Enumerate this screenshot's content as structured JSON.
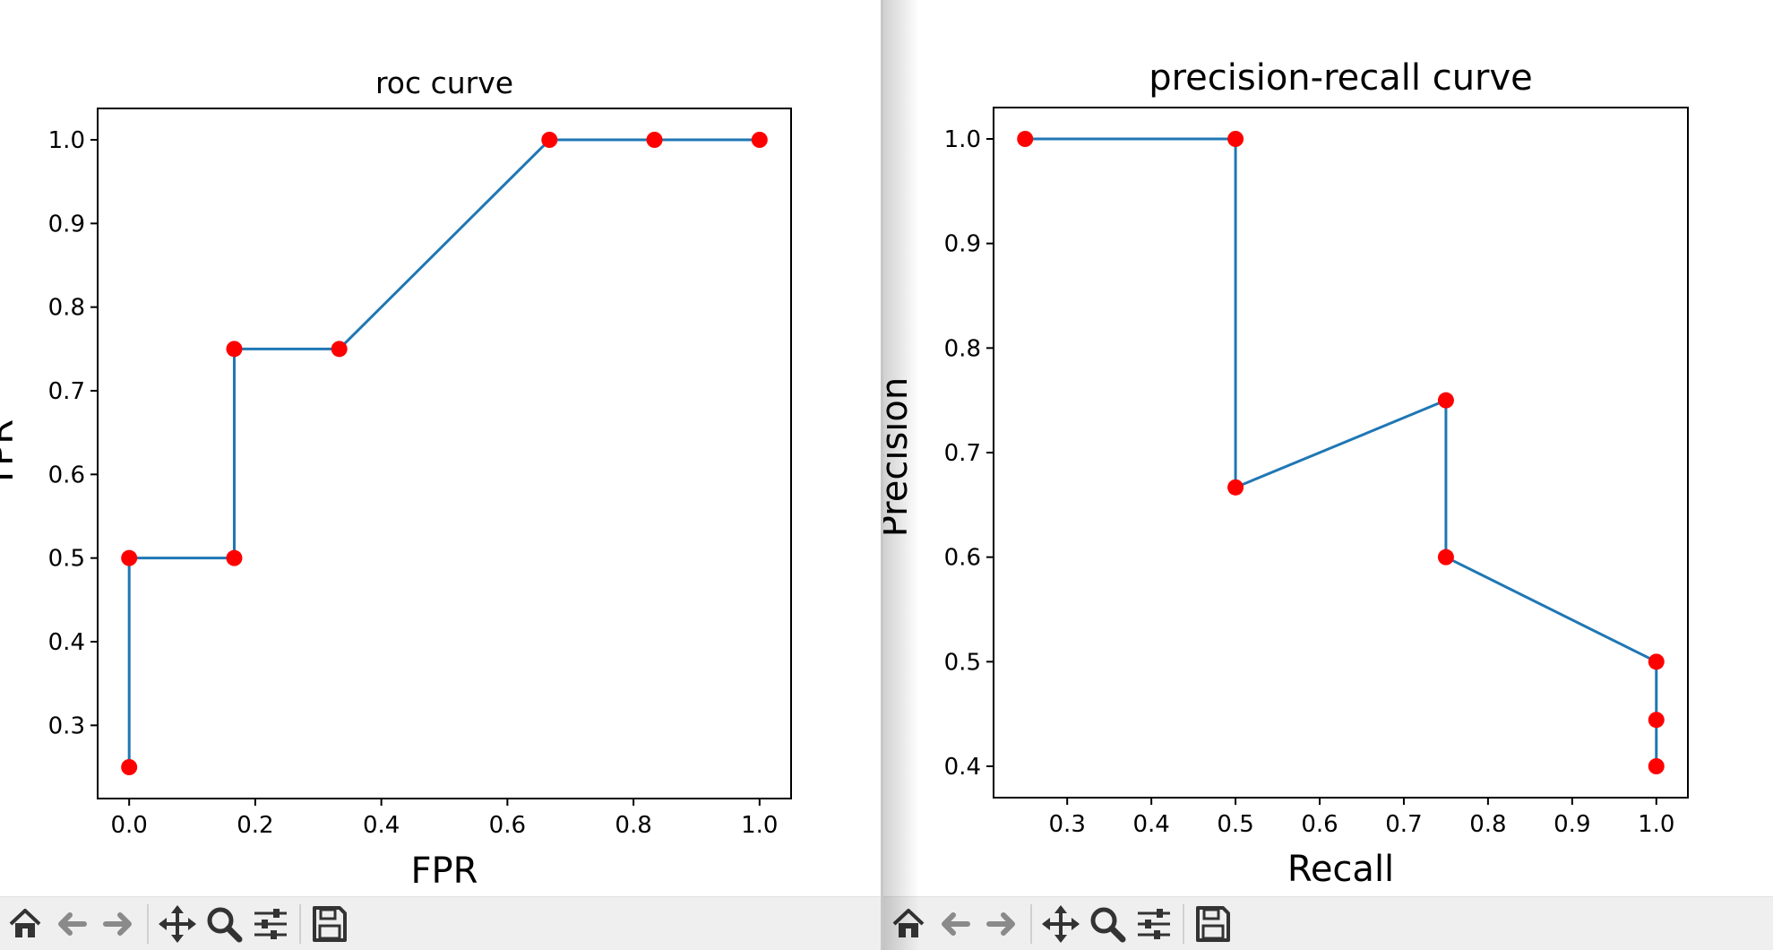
{
  "colors": {
    "line": "#1f77b4",
    "marker": "#ff0000",
    "toolbar_bg": "#efefef",
    "icon": "#333333"
  },
  "windows": [
    {
      "id": "left",
      "toolbar": {
        "buttons": [
          {
            "icon": "home-icon",
            "label": "Home"
          },
          {
            "icon": "back-arrow-icon",
            "label": "Back"
          },
          {
            "icon": "forward-arrow-icon",
            "label": "Forward"
          },
          {
            "icon": "pan-move-icon",
            "label": "Pan"
          },
          {
            "icon": "zoom-magnifier-icon",
            "label": "Zoom"
          },
          {
            "icon": "configure-subplots-icon",
            "label": "Subplots"
          },
          {
            "icon": "save-floppy-icon",
            "label": "Save"
          }
        ]
      }
    },
    {
      "id": "right",
      "toolbar": {
        "buttons": [
          {
            "icon": "home-icon",
            "label": "Home"
          },
          {
            "icon": "back-arrow-icon",
            "label": "Back"
          },
          {
            "icon": "forward-arrow-icon",
            "label": "Forward"
          },
          {
            "icon": "pan-move-icon",
            "label": "Pan"
          },
          {
            "icon": "zoom-magnifier-icon",
            "label": "Zoom"
          },
          {
            "icon": "configure-subplots-icon",
            "label": "Subplots"
          },
          {
            "icon": "save-floppy-icon",
            "label": "Save"
          }
        ]
      }
    }
  ],
  "chart_data": [
    {
      "type": "line",
      "title": "roc curve",
      "xlabel": "FPR",
      "ylabel": "TPR",
      "x": [
        0.0,
        0.0,
        0.1667,
        0.1667,
        0.3333,
        0.6667,
        0.8333,
        1.0
      ],
      "y": [
        0.25,
        0.5,
        0.5,
        0.75,
        0.75,
        1.0,
        1.0,
        1.0
      ],
      "xlim": [
        -0.05,
        1.05
      ],
      "ylim": [
        0.2125,
        1.0375
      ],
      "xticks": [
        0.0,
        0.2,
        0.4,
        0.6,
        0.8,
        1.0
      ],
      "xtick_labels": [
        "0.0",
        "0.2",
        "0.4",
        "0.6",
        "0.8",
        "1.0"
      ],
      "yticks": [
        0.3,
        0.4,
        0.5,
        0.6,
        0.7,
        0.8,
        0.9,
        1.0
      ],
      "ytick_labels": [
        "0.3",
        "0.4",
        "0.5",
        "0.6",
        "0.7",
        "0.8",
        "0.9",
        "1.0"
      ],
      "markers": true,
      "grid": false
    },
    {
      "type": "line",
      "title": "precision-recall curve",
      "xlabel": "Recall",
      "ylabel": "Precision",
      "x": [
        0.25,
        0.5,
        0.5,
        0.75,
        0.75,
        1.0,
        1.0,
        1.0
      ],
      "y": [
        1.0,
        1.0,
        0.6667,
        0.75,
        0.6,
        0.5,
        0.4444,
        0.4
      ],
      "xlim": [
        0.2125,
        1.0375
      ],
      "ylim": [
        0.37,
        1.03
      ],
      "xticks": [
        0.3,
        0.4,
        0.5,
        0.6,
        0.7,
        0.8,
        0.9,
        1.0
      ],
      "xtick_labels": [
        "0.3",
        "0.4",
        "0.5",
        "0.6",
        "0.7",
        "0.8",
        "0.9",
        "1.0"
      ],
      "yticks": [
        0.4,
        0.5,
        0.6,
        0.7,
        0.8,
        0.9,
        1.0
      ],
      "ytick_labels": [
        "0.4",
        "0.5",
        "0.6",
        "0.7",
        "0.8",
        "0.9",
        "1.0"
      ],
      "markers": true,
      "grid": false
    }
  ]
}
